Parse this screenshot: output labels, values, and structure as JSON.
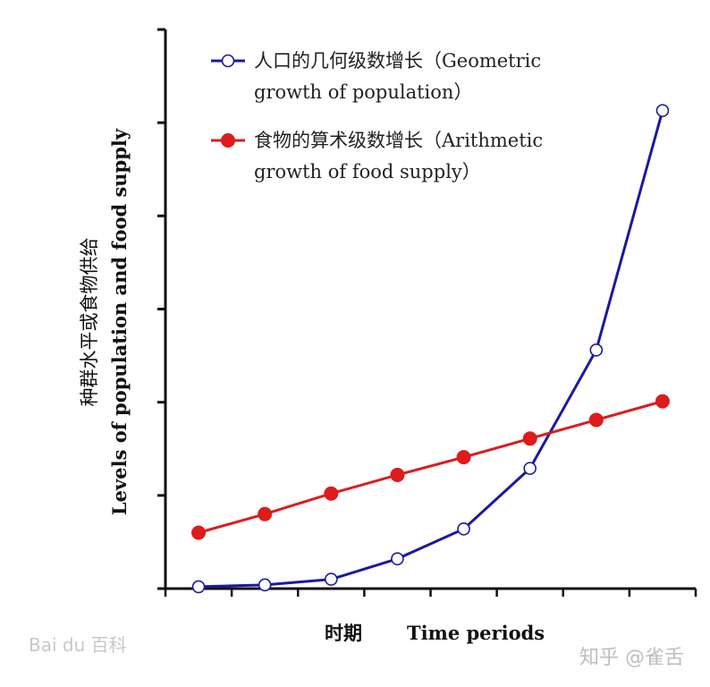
{
  "chart_data": {
    "type": "line",
    "x": [
      1,
      2,
      3,
      4,
      5,
      6,
      7,
      8
    ],
    "xlim": [
      0.5,
      8.5
    ],
    "ylim": [
      0,
      6
    ],
    "y_major_ticks": [
      0,
      1,
      2,
      3,
      4,
      5,
      6
    ],
    "x_tick_count": 8,
    "grid": false,
    "legend_position": "top-left",
    "series": [
      {
        "name_line1": "人口的几何级数增长（Geometric",
        "name_line2": "growth of population）",
        "color": "#1a1aa0",
        "marker": "open-circle",
        "values": [
          0.02,
          0.04,
          0.1,
          0.32,
          0.64,
          1.29,
          2.56,
          5.13
        ]
      },
      {
        "name_line1": "食物的算术级数增长（Arithmetic",
        "name_line2": "growth of food supply）",
        "color": "#dd1c1c",
        "marker": "filled-circle",
        "values": [
          0.6,
          0.8,
          1.02,
          1.22,
          1.41,
          1.61,
          1.81,
          2.01
        ]
      }
    ],
    "ylabel_cn": "种群水平或食物供给",
    "ylabel_en": "Levels of population and food supply",
    "xlabel_cn": "时期",
    "xlabel_en": "Time periods"
  },
  "watermark_left": "Bai du 百科",
  "watermark_right": "知乎 @雀舌"
}
